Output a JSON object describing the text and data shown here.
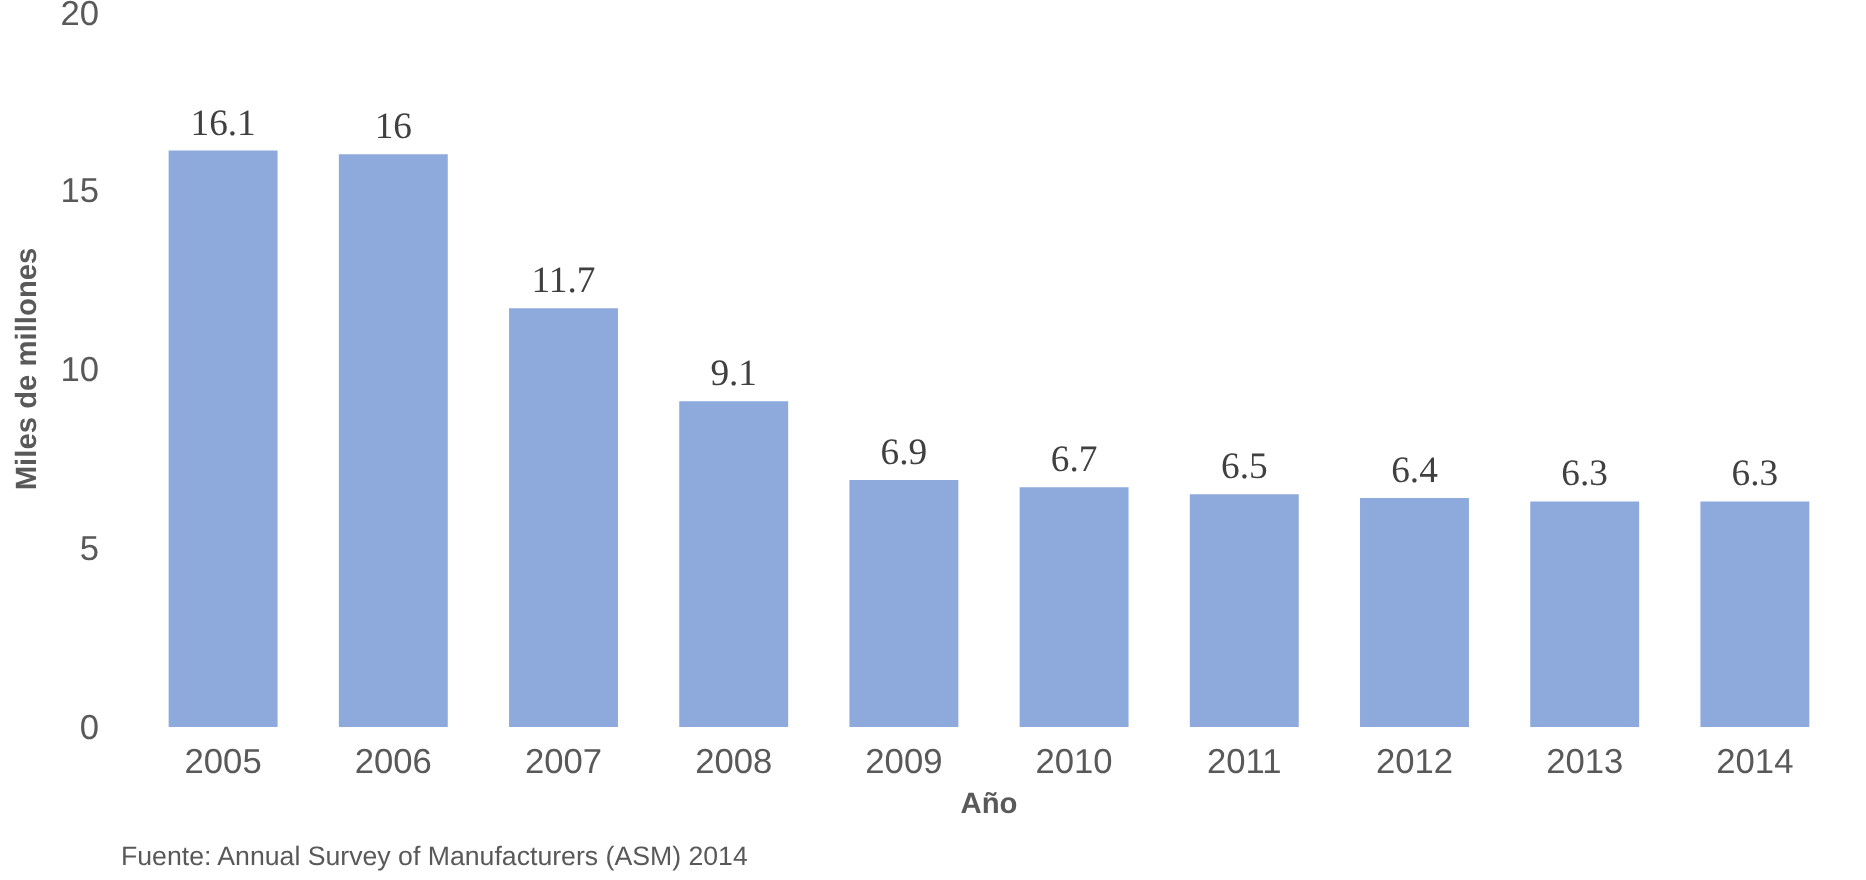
{
  "chart_data": {
    "type": "bar",
    "xlabel": "Año",
    "ylabel": "Miles de millones",
    "categories": [
      "2005",
      "2006",
      "2007",
      "2008",
      "2009",
      "2010",
      "2011",
      "2012",
      "2013",
      "2014"
    ],
    "values": [
      16.1,
      16,
      11.7,
      9.1,
      6.9,
      6.7,
      6.5,
      6.4,
      6.3,
      6.3
    ],
    "color": "#8eaadc",
    "ylim": [
      0,
      20
    ],
    "yticks": [
      0,
      5,
      10,
      15,
      20
    ],
    "grid": false,
    "data_labels": true,
    "annotations": [
      "Fuente: Annual Survey of Manufacturers (ASM) 2014"
    ]
  }
}
